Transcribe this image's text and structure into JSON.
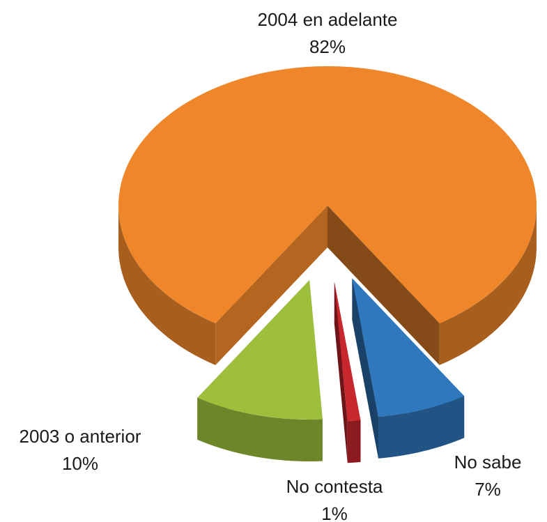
{
  "chart_data": {
    "type": "pie",
    "categories": [
      "2004 en adelante",
      "No sabe",
      "No contesta",
      "2003 o anterior"
    ],
    "values": [
      82,
      7,
      1,
      10
    ],
    "value_labels": [
      "82%",
      "7%",
      "1%",
      "10%"
    ],
    "colors": [
      "#f0862a",
      "#2f78be",
      "#c8272e",
      "#9dbf3c"
    ]
  }
}
